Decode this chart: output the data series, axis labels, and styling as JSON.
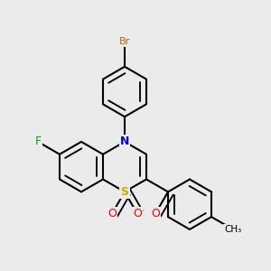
{
  "background_color": "#ebebeb",
  "atom_colors": {
    "Br": "#b8670a",
    "N": "#0000cc",
    "F": "#00aa00",
    "S": "#ccaa00",
    "O": "#ff0000",
    "C": "#000000"
  },
  "bond_color": "#000000",
  "bond_width": 1.5,
  "figsize": [
    3.0,
    3.0
  ],
  "dpi": 100
}
